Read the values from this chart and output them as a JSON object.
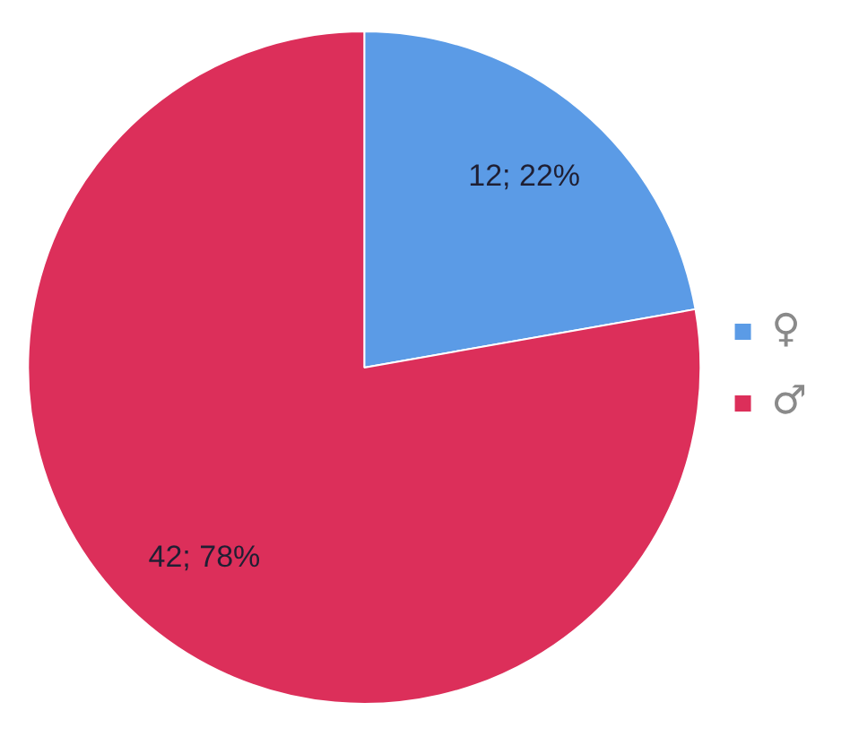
{
  "chart_data": {
    "type": "pie",
    "categories": [
      "♀",
      "♂"
    ],
    "values": [
      12,
      42
    ],
    "colors": [
      "#5b9be6",
      "#dc2f5a"
    ],
    "value_labels": [
      "12; 22%",
      "42; 78%"
    ],
    "legend": "right"
  }
}
